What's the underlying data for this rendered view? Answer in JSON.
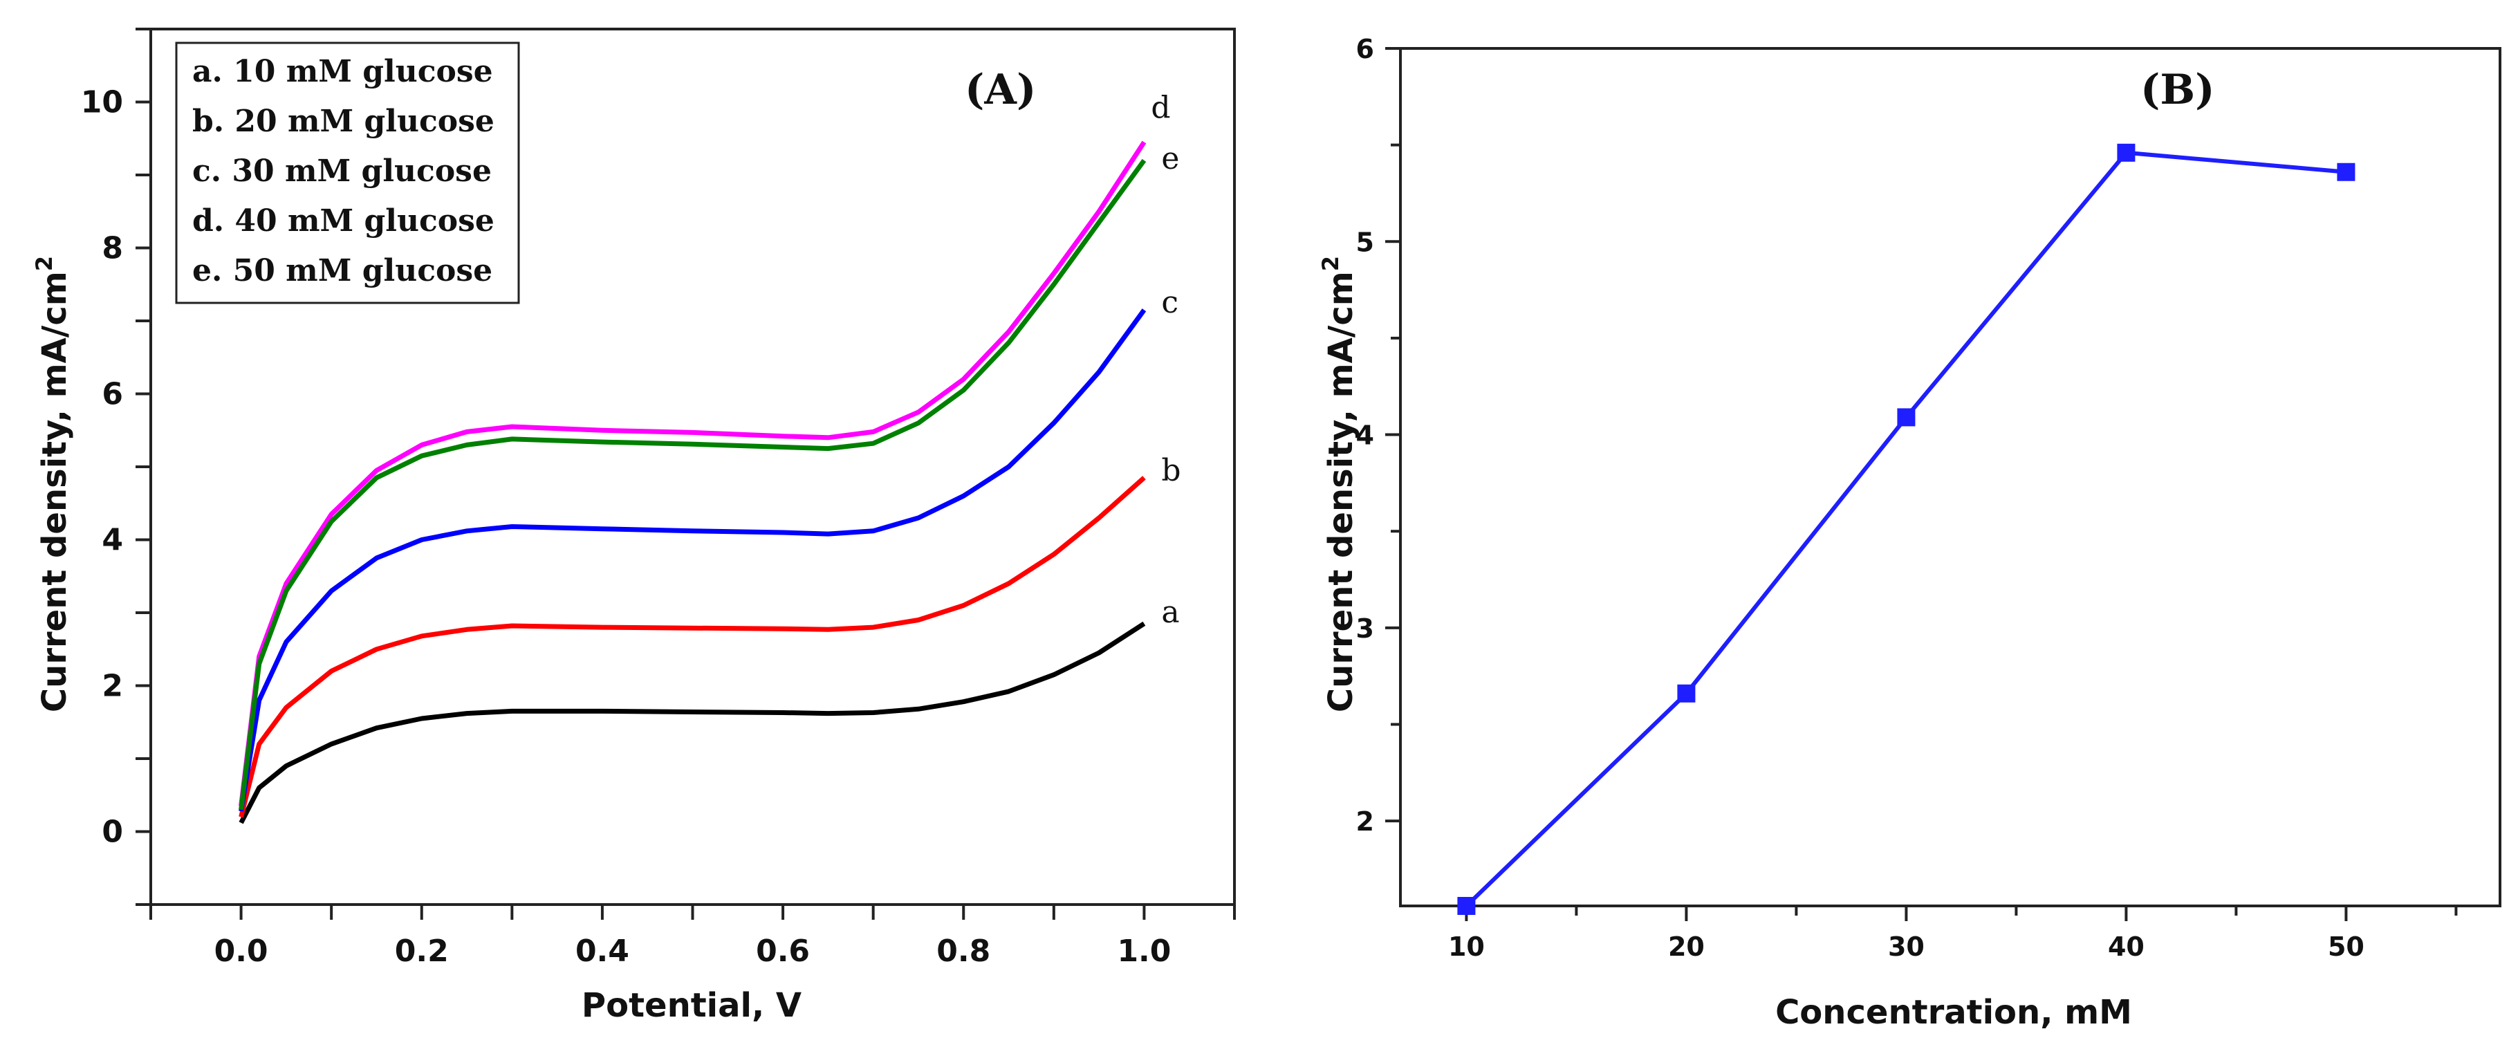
{
  "chart_data": [
    {
      "type": "line",
      "panel_label": "(A)",
      "xlabel": "Potential, V",
      "ylabel": "Current density, mA/cm",
      "ylabel_sup": "2",
      "xlim": [
        -0.1,
        1.1
      ],
      "ylim": [
        -1,
        11
      ],
      "xticks": [
        "0.0",
        "0.2",
        "0.4",
        "0.6",
        "0.8",
        "1.0"
      ],
      "xtick_values": [
        0,
        0.2,
        0.4,
        0.6,
        0.8,
        1.0
      ],
      "yticks": [
        "0",
        "2",
        "4",
        "6",
        "8",
        "10"
      ],
      "ytick_values": [
        0,
        2,
        4,
        6,
        8,
        10
      ],
      "legend_position": "top-left",
      "legend": [
        "a. 10 mM glucose",
        "b. 20 mM glucose",
        "c. 30 mM glucose",
        "d. 40 mM glucose",
        "e. 50 mM glucose"
      ],
      "series": [
        {
          "name": "a",
          "color": "#000000",
          "label": "a",
          "x": [
            0,
            0.02,
            0.05,
            0.1,
            0.15,
            0.2,
            0.25,
            0.3,
            0.4,
            0.5,
            0.6,
            0.65,
            0.7,
            0.75,
            0.8,
            0.85,
            0.9,
            0.95,
            1.0
          ],
          "y": [
            0.12,
            0.6,
            0.9,
            1.2,
            1.42,
            1.55,
            1.62,
            1.65,
            1.65,
            1.64,
            1.63,
            1.62,
            1.63,
            1.68,
            1.78,
            1.92,
            2.15,
            2.45,
            2.85
          ]
        },
        {
          "name": "b",
          "color": "#ff0000",
          "label": "b",
          "x": [
            0,
            0.02,
            0.05,
            0.1,
            0.15,
            0.2,
            0.25,
            0.3,
            0.4,
            0.5,
            0.6,
            0.65,
            0.7,
            0.75,
            0.8,
            0.85,
            0.9,
            0.95,
            1.0
          ],
          "y": [
            0.2,
            1.2,
            1.7,
            2.2,
            2.5,
            2.68,
            2.77,
            2.82,
            2.8,
            2.79,
            2.78,
            2.77,
            2.8,
            2.9,
            3.1,
            3.4,
            3.8,
            4.3,
            4.85
          ]
        },
        {
          "name": "c",
          "color": "#0000ff",
          "label": "c",
          "x": [
            0,
            0.02,
            0.05,
            0.1,
            0.15,
            0.2,
            0.25,
            0.3,
            0.4,
            0.5,
            0.6,
            0.65,
            0.7,
            0.75,
            0.8,
            0.85,
            0.9,
            0.95,
            1.0
          ],
          "y": [
            0.28,
            1.8,
            2.6,
            3.3,
            3.75,
            4.0,
            4.12,
            4.18,
            4.15,
            4.12,
            4.1,
            4.08,
            4.12,
            4.3,
            4.6,
            5.0,
            5.6,
            6.3,
            7.15
          ]
        },
        {
          "name": "d",
          "color": "#ff00ff",
          "label": "d",
          "x": [
            0,
            0.02,
            0.05,
            0.1,
            0.15,
            0.2,
            0.25,
            0.3,
            0.4,
            0.5,
            0.6,
            0.65,
            0.7,
            0.75,
            0.8,
            0.85,
            0.9,
            0.95,
            1.0
          ],
          "y": [
            0.35,
            2.4,
            3.4,
            4.35,
            4.95,
            5.3,
            5.48,
            5.55,
            5.5,
            5.47,
            5.42,
            5.4,
            5.48,
            5.75,
            6.2,
            6.85,
            7.65,
            8.5,
            9.45
          ]
        },
        {
          "name": "e",
          "color": "#008000",
          "label": "e",
          "x": [
            0,
            0.02,
            0.05,
            0.1,
            0.15,
            0.2,
            0.25,
            0.3,
            0.4,
            0.5,
            0.6,
            0.65,
            0.7,
            0.75,
            0.8,
            0.85,
            0.9,
            0.95,
            1.0
          ],
          "y": [
            0.3,
            2.3,
            3.3,
            4.25,
            4.85,
            5.15,
            5.3,
            5.38,
            5.34,
            5.31,
            5.27,
            5.25,
            5.32,
            5.6,
            6.05,
            6.7,
            7.5,
            8.35,
            9.2
          ]
        }
      ]
    },
    {
      "type": "line",
      "panel_label": "(B)",
      "xlabel": "Concentration, mM",
      "ylabel": "Current density, mA/cm",
      "ylabel_sup": "2",
      "xlim": [
        7,
        57
      ],
      "ylim": [
        1.56,
        6
      ],
      "xticks": [
        "10",
        "20",
        "30",
        "40",
        "50"
      ],
      "xtick_values": [
        10,
        20,
        30,
        40,
        50
      ],
      "yticks": [
        "2",
        "3",
        "4",
        "5",
        "6"
      ],
      "ytick_values": [
        2,
        3,
        4,
        5,
        6
      ],
      "series": [
        {
          "name": "current density",
          "color": "#1e1eff",
          "x": [
            10,
            20,
            30,
            40,
            50
          ],
          "y": [
            1.56,
            2.66,
            4.09,
            5.46,
            5.36
          ]
        }
      ]
    }
  ]
}
